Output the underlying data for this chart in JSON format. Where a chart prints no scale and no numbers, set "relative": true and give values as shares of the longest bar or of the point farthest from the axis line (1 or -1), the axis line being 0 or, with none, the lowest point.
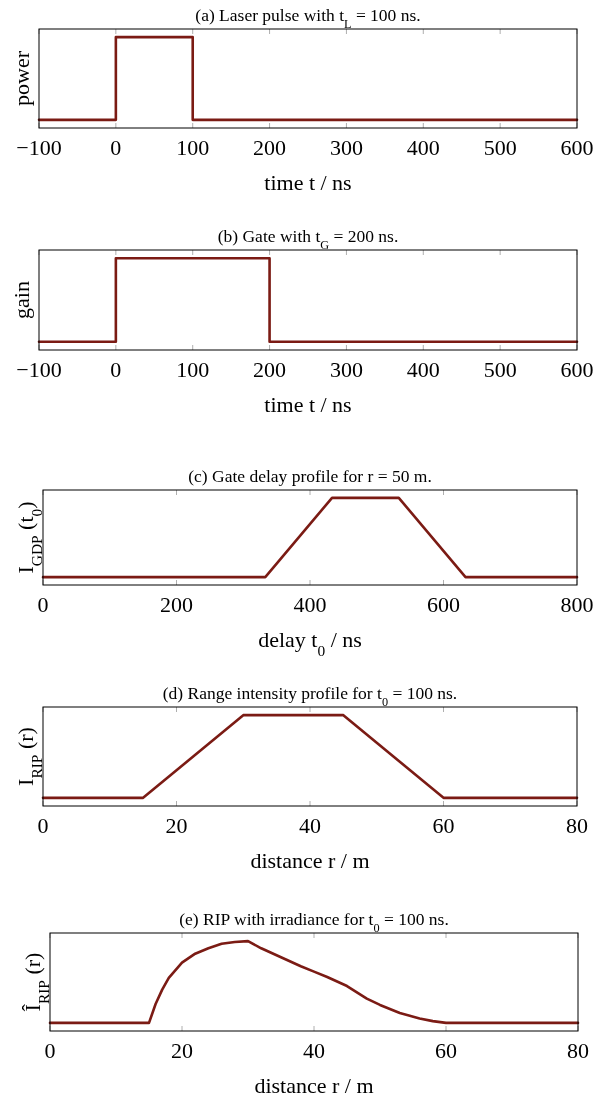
{
  "chart_data": [
    {
      "type": "line",
      "title": "(a) Laser pulse with t$_{L}$ = 100 ns.",
      "xlabel": "time t / ns",
      "ylabel": "power",
      "relative": true,
      "xlim": [
        -100,
        600
      ],
      "xticks": [
        -100,
        0,
        100,
        200,
        300,
        400,
        500,
        600
      ],
      "series": [
        {
          "color": "#7b1b14",
          "x": [
            -100,
            0,
            0,
            100,
            100,
            600
          ],
          "values": [
            0.09,
            0.09,
            1,
            1,
            0.09,
            0.09
          ]
        }
      ]
    },
    {
      "type": "line",
      "title": "(b) Gate with t$_{G}$ = 200 ns.",
      "xlabel": "time t / ns",
      "ylabel": "gain",
      "relative": true,
      "xlim": [
        -100,
        600
      ],
      "xticks": [
        -100,
        0,
        100,
        200,
        300,
        400,
        500,
        600
      ],
      "series": [
        {
          "color": "#7b1b14",
          "x": [
            -100,
            0,
            0,
            200,
            200,
            600
          ],
          "values": [
            0.09,
            0.09,
            1,
            1,
            0.09,
            0.09
          ]
        }
      ]
    },
    {
      "type": "line",
      "title": "(c) Gate delay profile for r = 50 m.",
      "xlabel": "delay t$_{0}$ / ns",
      "ylabel": "I$_{GDP}$ (t$_{0}$)",
      "relative": true,
      "xlim": [
        0,
        800
      ],
      "xticks": [
        0,
        200,
        400,
        600,
        800
      ],
      "series": [
        {
          "color": "#7b1b14",
          "x": [
            0,
            333,
            433,
            533,
            633,
            800
          ],
          "values": [
            0.09,
            0.09,
            1,
            1,
            0.09,
            0.09
          ]
        }
      ]
    },
    {
      "type": "line",
      "title": "(d) Range intensity profile for t$_{0}$ = 100 ns.",
      "xlabel": "distance r / m",
      "ylabel": "I$_{RIP}$ (r)",
      "relative": true,
      "xlim": [
        0,
        80
      ],
      "xticks": [
        0,
        20,
        40,
        60,
        80
      ],
      "series": [
        {
          "color": "#7b1b14",
          "x": [
            0,
            15,
            30,
            45,
            60,
            80
          ],
          "values": [
            0.09,
            0.09,
            1,
            1,
            0.09,
            0.09
          ]
        }
      ]
    },
    {
      "type": "line",
      "title": "(e) RIP with irradiance for t$_{0}$ = 100 ns.",
      "xlabel": "distance r / m",
      "ylabel": "Î$_{RIP}$ (r)",
      "relative": true,
      "xlim": [
        0,
        80
      ],
      "xticks": [
        0,
        20,
        40,
        60,
        80
      ],
      "series": [
        {
          "color": "#7b1b14",
          "x": [
            0,
            15,
            16,
            17,
            18,
            20,
            22,
            24,
            26,
            28,
            30,
            32,
            35,
            38,
            40,
            42,
            45,
            48,
            50,
            53,
            56,
            58,
            60,
            80
          ],
          "values": [
            0.09,
            0.09,
            0.3,
            0.46,
            0.59,
            0.76,
            0.86,
            0.92,
            0.97,
            0.99,
            1,
            0.92,
            0.82,
            0.72,
            0.66,
            0.6,
            0.5,
            0.36,
            0.29,
            0.2,
            0.14,
            0.11,
            0.09,
            0.09
          ]
        }
      ]
    }
  ]
}
